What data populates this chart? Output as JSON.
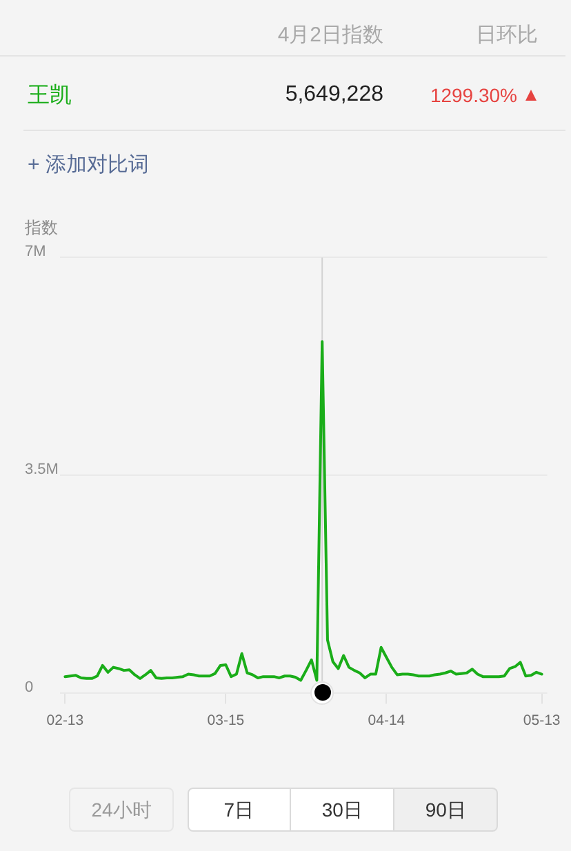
{
  "chart_data": {
    "type": "line",
    "ylabel": "指数",
    "x": [
      "--02-13",
      "--02-14",
      "--02-15",
      "--02-16",
      "--02-17",
      "--02-18",
      "--02-19",
      "--02-20",
      "--02-21",
      "--02-22",
      "--02-23",
      "--02-24",
      "--02-25",
      "--02-26",
      "--02-27",
      "--02-28",
      "--03-01",
      "--03-02",
      "--03-03",
      "--03-04",
      "--03-05",
      "--03-06",
      "--03-07",
      "--03-08",
      "--03-09",
      "--03-10",
      "--03-11",
      "--03-12",
      "--03-13",
      "--03-14",
      "--03-15",
      "--03-16",
      "--03-17",
      "--03-18",
      "--03-19",
      "--03-20",
      "--03-21",
      "--03-22",
      "--03-23",
      "--03-24",
      "--03-25",
      "--03-26",
      "--03-27",
      "--03-28",
      "--03-29",
      "--03-30",
      "--03-31",
      "--04-01",
      "--04-02",
      "--04-03",
      "--04-04",
      "--04-05",
      "--04-06",
      "--04-07",
      "--04-08",
      "--04-09",
      "--04-10",
      "--04-11",
      "--04-12",
      "--04-13",
      "--04-14",
      "--04-15",
      "--04-16",
      "--04-17",
      "--04-18",
      "--04-19",
      "--04-20",
      "--04-21",
      "--04-22",
      "--04-23",
      "--04-24",
      "--04-25",
      "--04-26",
      "--04-27",
      "--04-28",
      "--04-29",
      "--04-30",
      "--05-01",
      "--05-02",
      "--05-03",
      "--05-04",
      "--05-05",
      "--05-06",
      "--05-07",
      "--05-08",
      "--05-09",
      "--05-10",
      "--05-11",
      "--05-12",
      "--05-13"
    ],
    "xlim": [
      "--02-12",
      "--05-14"
    ],
    "xticks": [
      {
        "value": "--02-13",
        "label": "02-13"
      },
      {
        "value": "--03-15",
        "label": "03-15"
      },
      {
        "value": "--04-14",
        "label": "04-14"
      },
      {
        "value": "--05-13",
        "label": "05-13"
      }
    ],
    "ylim": [
      0,
      7000000
    ],
    "yticks": [
      0,
      {
        "value": 3500000,
        "label": "3.5M"
      },
      {
        "value": 7000000,
        "label": "7M"
      }
    ],
    "series": [
      {
        "name": "王凯",
        "color": "#1aad19",
        "values": [
          260000,
          270000,
          280000,
          240000,
          230000,
          230000,
          270000,
          440000,
          330000,
          410000,
          390000,
          360000,
          370000,
          290000,
          230000,
          290000,
          360000,
          240000,
          230000,
          240000,
          240000,
          250000,
          260000,
          300000,
          290000,
          270000,
          270000,
          270000,
          310000,
          440000,
          450000,
          260000,
          300000,
          630000,
          320000,
          290000,
          240000,
          260000,
          260000,
          260000,
          240000,
          270000,
          270000,
          250000,
          200000,
          360000,
          530000,
          200000,
          5649228,
          850000,
          500000,
          390000,
          600000,
          410000,
          360000,
          320000,
          240000,
          300000,
          300000,
          730000,
          570000,
          410000,
          290000,
          300000,
          300000,
          290000,
          270000,
          270000,
          270000,
          290000,
          300000,
          320000,
          350000,
          300000,
          310000,
          320000,
          380000,
          300000,
          260000,
          260000,
          260000,
          260000,
          270000,
          390000,
          420000,
          490000,
          270000,
          280000,
          330000,
          300000
        ]
      }
    ],
    "ref_lines": [
      {
        "axis": "x",
        "value": "--04-02",
        "color": "#d2d2d2"
      }
    ],
    "annotations": [
      "4月2日指数",
      "日环比",
      "5,649,228",
      "1299.30%",
      "+ 添加对比词",
      "24小时",
      "7日",
      "30日",
      "90日"
    ],
    "grid": "y",
    "marker": "none",
    "line_style": "solid"
  }
}
